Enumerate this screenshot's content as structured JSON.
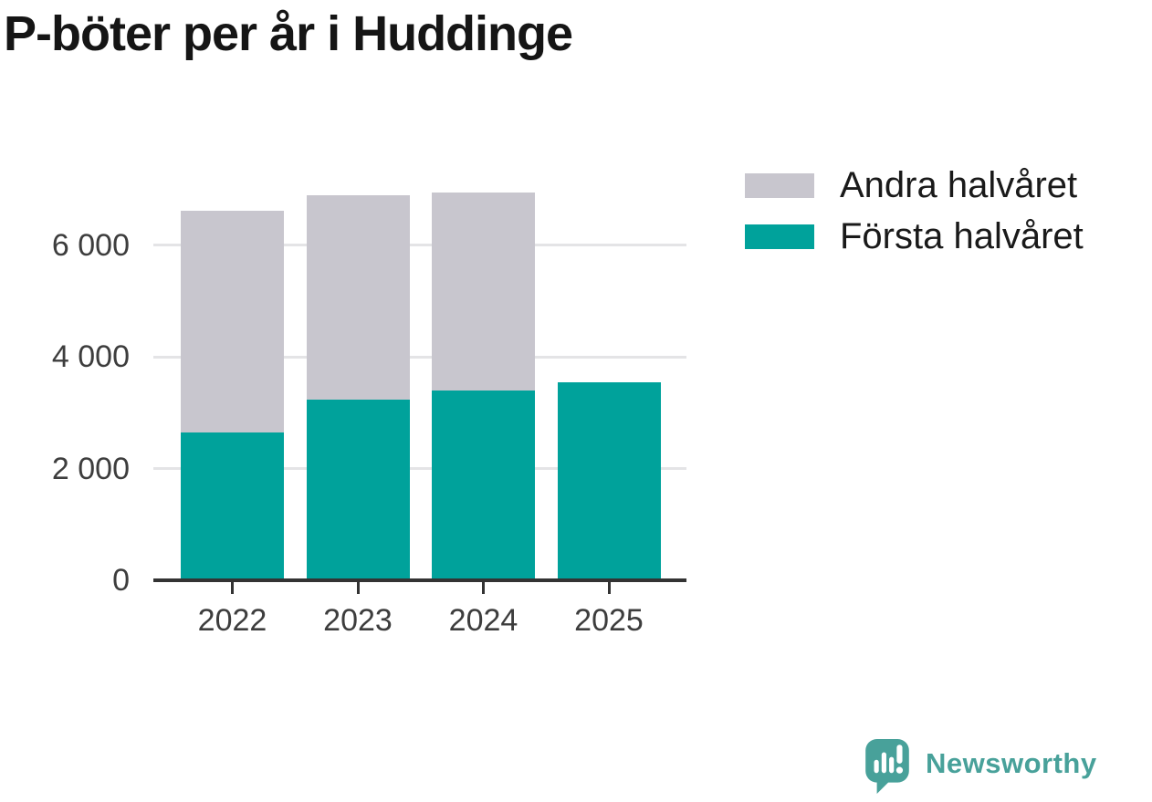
{
  "title": "P-böter per år i Huddinge",
  "chart_data": {
    "type": "bar",
    "stacked": true,
    "title": "P-böter per år i Huddinge",
    "categories": [
      "2022",
      "2023",
      "2024",
      "2025"
    ],
    "series": [
      {
        "name": "Första halvåret",
        "color": "#00a29b",
        "values": [
          2645,
          3240,
          3390,
          3540
        ]
      },
      {
        "name": "Andra halvåret",
        "color": "#c8c6ce",
        "values": [
          3965,
          3650,
          3550,
          0
        ]
      }
    ],
    "xlabel": "",
    "ylabel": "",
    "ylim": [
      0,
      7100
    ],
    "yticks": [
      0,
      2000,
      4000,
      6000
    ],
    "ytick_labels": [
      "0",
      "2 000",
      "4 000",
      "6 000"
    ],
    "grid": true,
    "legend_position": "top-right"
  },
  "legend": {
    "items": [
      {
        "label": "Andra halvåret",
        "color": "#c8c6ce"
      },
      {
        "label": "Första halvåret",
        "color": "#00a29b"
      }
    ]
  },
  "footer": {
    "brand": "Newsworthy",
    "brand_color": "#48a19a",
    "logo_icon": "bar-chart-speech-bubble-icon"
  },
  "colors": {
    "axis": "#333333",
    "grid": "#e4e4e6",
    "tick_text": "#3d3d3d",
    "title_text": "#151515"
  }
}
